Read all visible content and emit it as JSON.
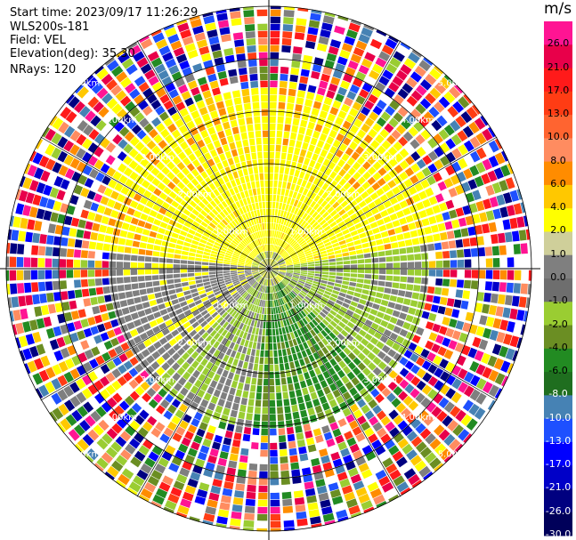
{
  "header": {
    "start_time": "Start time: 2023/09/17 11:26:29",
    "instrument": "WLS200s-181",
    "field": "Field: VEL",
    "elevation": "Elevation(deg): 35.30",
    "nrays": "NRays: 120"
  },
  "range_rings": [
    "1.00km",
    "2.00km",
    "3.00km",
    "4.00km",
    "5.00km"
  ],
  "colorbar": {
    "unit": "m/s",
    "levels": [
      "26.0",
      "21.0",
      "17.0",
      "13.0",
      "10.0",
      "8.0",
      "6.0",
      "4.0",
      "2.0",
      "1.0",
      "0.0",
      "-1.0",
      "-2.0",
      "-4.0",
      "-6.0",
      "-8.0",
      "-10.0",
      "-13.0",
      "-17.0",
      "-21.0",
      "-26.0",
      "-30.0"
    ],
    "colors": [
      "#ff1493",
      "#e8004a",
      "#ff1a1a",
      "#ff3c14",
      "#ff6430",
      "#ff8c60",
      "#ff8c00",
      "#ffc800",
      "#ffff00",
      "#cfcf9a",
      "#7f7f7f",
      "#6e6e6e",
      "#9acd32",
      "#6b8e23",
      "#228b22",
      "#1f6e1f",
      "#4682b4",
      "#1e50ff",
      "#0000ff",
      "#0000c8",
      "#000080",
      "#00005a"
    ]
  }
}
